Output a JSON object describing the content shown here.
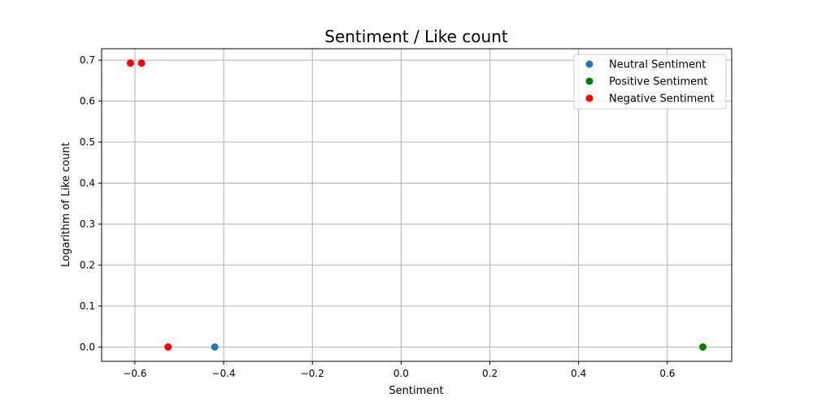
{
  "chart_data": {
    "type": "scatter",
    "title": "Sentiment / Like count",
    "xlabel": "Sentiment",
    "ylabel": "Logarithm of Like count",
    "xlim": [
      -0.675,
      0.745
    ],
    "ylim": [
      -0.035,
      0.728
    ],
    "x_ticks": [
      -0.6,
      -0.4,
      -0.2,
      0.0,
      0.2,
      0.4,
      0.6
    ],
    "x_tick_labels": [
      "−0.6",
      "−0.4",
      "−0.2",
      "0.0",
      "0.2",
      "0.4",
      "0.6"
    ],
    "y_ticks": [
      0.0,
      0.1,
      0.2,
      0.3,
      0.4,
      0.5,
      0.6,
      0.7
    ],
    "y_tick_labels": [
      "0.0",
      "0.1",
      "0.2",
      "0.3",
      "0.4",
      "0.5",
      "0.6",
      "0.7"
    ],
    "grid": true,
    "legend_position": "top-right",
    "series": [
      {
        "name": "Neutral Sentiment",
        "color": "#1f77b4",
        "points": [
          [
            -0.42,
            0.0
          ]
        ]
      },
      {
        "name": "Positive Sentiment",
        "color": "#008000",
        "points": [
          [
            0.68,
            0.0
          ]
        ]
      },
      {
        "name": "Negative Sentiment",
        "color": "#ff0000",
        "points": [
          [
            -0.61,
            0.693
          ],
          [
            -0.585,
            0.693
          ],
          [
            -0.525,
            0.0
          ]
        ]
      }
    ]
  }
}
